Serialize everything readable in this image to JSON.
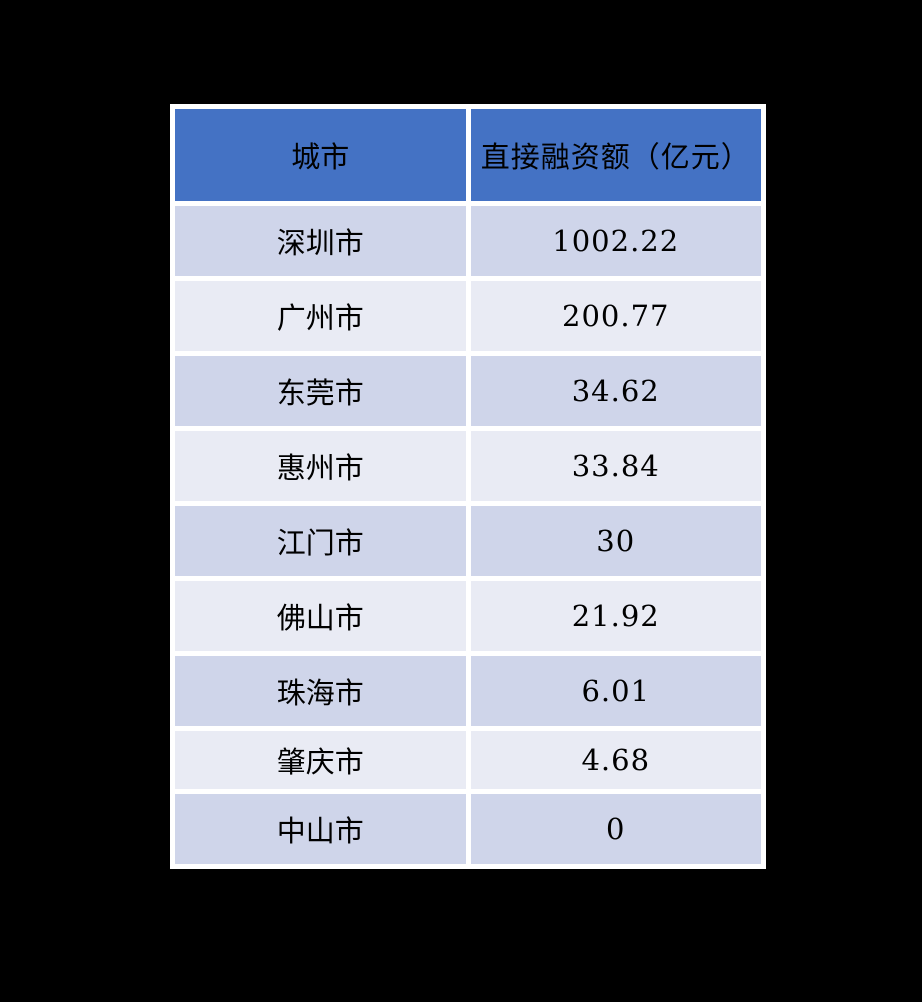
{
  "page": {
    "background": "#000000"
  },
  "table": {
    "header": {
      "columns": [
        "城市",
        "直接融资额（亿元）"
      ]
    },
    "rows": [
      {
        "city": "深圳市",
        "value": "1002.22"
      },
      {
        "city": "广州市",
        "value": "200.77"
      },
      {
        "city": "东莞市",
        "value": "34.62"
      },
      {
        "city": "惠州市",
        "value": "33.84"
      },
      {
        "city": "江门市",
        "value": "30"
      },
      {
        "city": "佛山市",
        "value": "21.92"
      },
      {
        "city": "珠海市",
        "value": "6.01"
      },
      {
        "city": "肇庆市",
        "value": "4.68"
      },
      {
        "city": "中山市",
        "value": "0"
      }
    ],
    "colors": {
      "header_background": "#4472C4",
      "row_odd": "#CFD5EA",
      "row_even": "#E9EBF4",
      "grid": "#FFFFFF",
      "text": "#000000",
      "canvas": "#000000"
    }
  },
  "chart_data": {
    "type": "table",
    "title": "",
    "columns": [
      "城市",
      "直接融资额（亿元）"
    ],
    "categories": [
      "深圳市",
      "广州市",
      "东莞市",
      "惠州市",
      "江门市",
      "佛山市",
      "珠海市",
      "肇庆市",
      "中山市"
    ],
    "values": [
      1002.22,
      200.77,
      34.62,
      33.84,
      30,
      21.92,
      6.01,
      4.68,
      0
    ],
    "value_unit": "亿元",
    "layout": {
      "background": "black",
      "grid": "white-separators",
      "header_style": "blue-banded",
      "row_style": "alternating"
    }
  }
}
